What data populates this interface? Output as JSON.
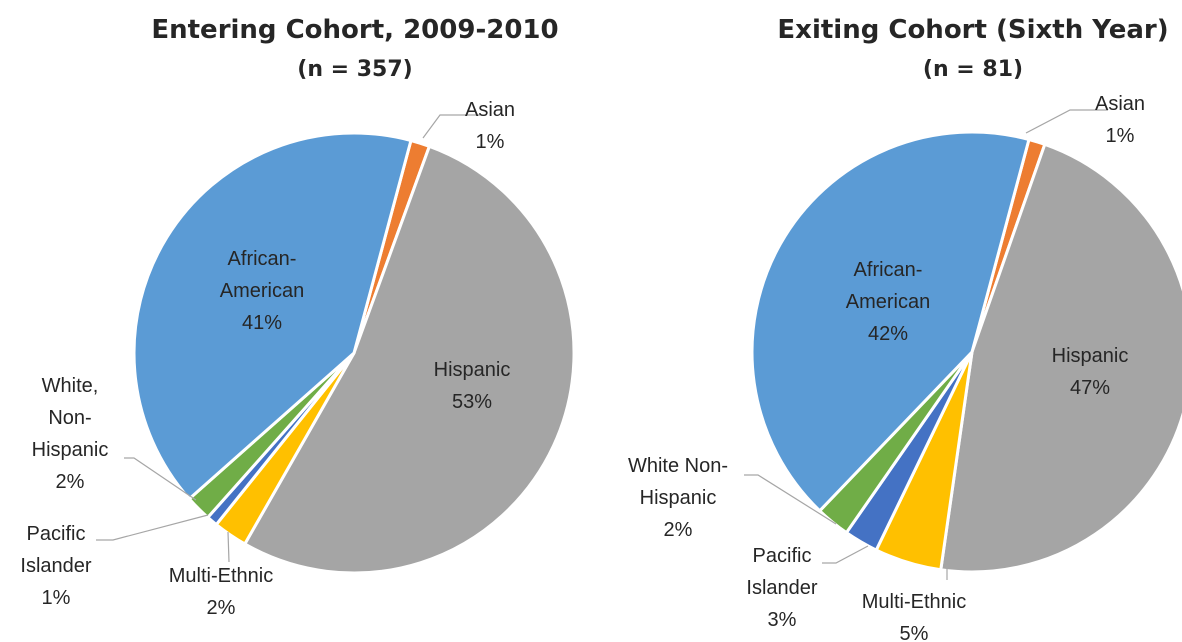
{
  "colors": {
    "asian": "#ED7D31",
    "hispanic": "#A5A5A5",
    "multi_ethnic": "#FFC000",
    "pacific_islander": "#4472C4",
    "white_non_hispanic": "#70AD47",
    "african_american": "#5B9BD5",
    "leader": "#A6A6A6",
    "text": "#262626"
  },
  "chart_data": [
    {
      "type": "pie",
      "title": "Entering Cohort, 2009-2010",
      "subtitle": "(n = 357)",
      "slices": [
        {
          "key": "asian",
          "value": 1.4,
          "label_lines": [
            "Asian",
            "1%"
          ]
        },
        {
          "key": "hispanic",
          "value": 52.7,
          "label_lines": [
            "Hispanic",
            "53%"
          ]
        },
        {
          "key": "multi_ethnic",
          "value": 2.5,
          "label_lines": [
            "Multi-Ethnic",
            "2%"
          ]
        },
        {
          "key": "pacific_islander",
          "value": 0.8,
          "label_lines": [
            "Pacific",
            "Islander",
            "1%"
          ]
        },
        {
          "key": "white_non_hispanic",
          "value": 1.9,
          "label_lines": [
            "White,",
            "Non-",
            "Hispanic",
            "2%"
          ]
        },
        {
          "key": "african_american",
          "value": 40.7,
          "label_lines": [
            "African-",
            "American",
            "41%"
          ]
        }
      ]
    },
    {
      "type": "pie",
      "title": "Exiting Cohort (Sixth Year)",
      "subtitle": "(n = 81)",
      "slices": [
        {
          "key": "asian",
          "value": 1.2,
          "label_lines": [
            "Asian",
            "1%"
          ]
        },
        {
          "key": "hispanic",
          "value": 46.9,
          "label_lines": [
            "Hispanic",
            "47%"
          ]
        },
        {
          "key": "multi_ethnic",
          "value": 4.9,
          "label_lines": [
            "Multi-Ethnic",
            "5%"
          ]
        },
        {
          "key": "pacific_islander",
          "value": 2.5,
          "label_lines": [
            "Pacific",
            "Islander",
            "3%"
          ]
        },
        {
          "key": "white_non_hispanic",
          "value": 2.5,
          "label_lines": [
            "White Non-",
            "Hispanic",
            "2%"
          ]
        },
        {
          "key": "african_american",
          "value": 42.0,
          "label_lines": [
            "African-",
            "American",
            "42%"
          ]
        }
      ]
    }
  ]
}
